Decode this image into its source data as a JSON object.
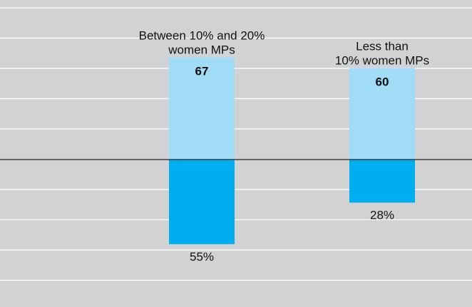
{
  "chart_data": {
    "type": "bar",
    "categories": [
      "Between 10% and 20% women MPs",
      "Less than 10% women MPs"
    ],
    "category_label_lines": [
      [
        "Between 10% and 20%",
        "women MPs"
      ],
      [
        "Less than",
        "10% women MPs"
      ]
    ],
    "series": [
      {
        "values": [
          67,
          60
        ],
        "labels": [
          "67",
          "60"
        ],
        "color": "#a1dcf7",
        "direction": "up"
      },
      {
        "values": [
          55,
          28
        ],
        "labels": [
          "55%",
          "28%"
        ],
        "color": "#00aeef",
        "direction": "down"
      }
    ],
    "grid": true,
    "baseline_color": "#231f20",
    "background": "#d1d2d4"
  }
}
